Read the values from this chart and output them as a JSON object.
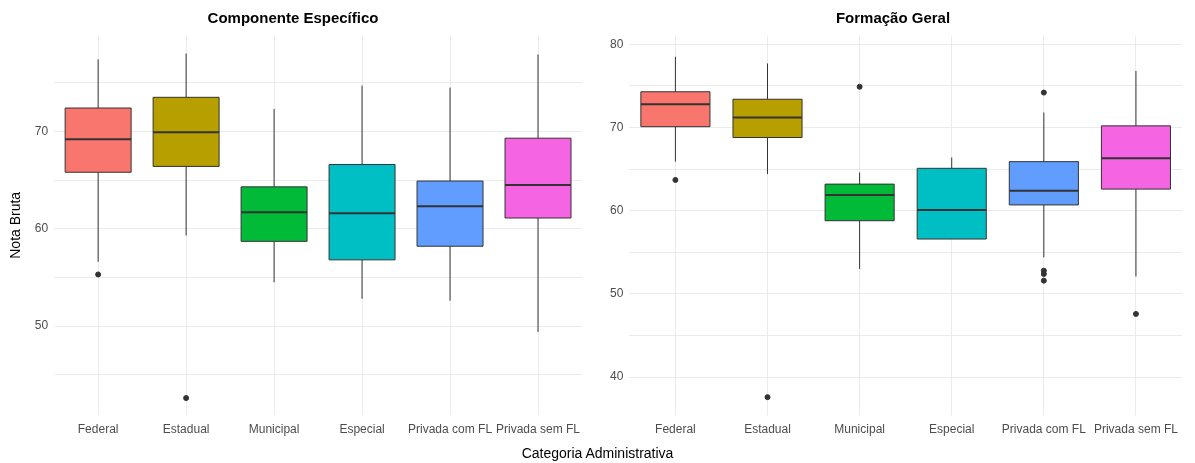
{
  "chart_data": [
    {
      "type": "box",
      "title": "Componente Específico",
      "xlabel": "Categoria Administrativa",
      "ylabel": "Nota Bruta",
      "categories": [
        "Federal",
        "Estadual",
        "Municipal",
        "Especial",
        "Privada com FL",
        "Privada sem FL"
      ],
      "colors": [
        "#f8766d",
        "#b79f00",
        "#00ba38",
        "#00bfc4",
        "#619cff",
        "#f564e3"
      ],
      "boxes": [
        {
          "low": 56.6,
          "q1": 65.8,
          "median": 69.2,
          "q3": 72.4,
          "high": 77.4,
          "outliers": [
            55.3
          ]
        },
        {
          "low": 59.3,
          "q1": 66.4,
          "median": 69.9,
          "q3": 73.5,
          "high": 78.0,
          "outliers": [
            42.6
          ]
        },
        {
          "low": 54.5,
          "q1": 58.7,
          "median": 61.7,
          "q3": 64.3,
          "high": 72.3
        },
        {
          "low": 52.8,
          "q1": 56.8,
          "median": 61.6,
          "q3": 66.6,
          "high": 74.7
        },
        {
          "low": 52.6,
          "q1": 58.2,
          "median": 62.3,
          "q3": 64.9,
          "high": 74.5
        },
        {
          "low": 49.4,
          "q1": 61.1,
          "median": 64.5,
          "q3": 69.3,
          "high": 77.9
        }
      ],
      "ylim": [
        40.9,
        79.8
      ],
      "yticks": [
        {
          "value": 45,
          "label": null
        },
        50,
        {
          "value": 55,
          "label": null
        },
        60,
        {
          "value": 65,
          "label": null
        },
        70,
        {
          "value": 75,
          "label": null
        }
      ],
      "grid": true,
      "legend": false
    },
    {
      "type": "box",
      "title": "Formação Geral",
      "categories": [
        "Federal",
        "Estadual",
        "Municipal",
        "Especial",
        "Privada com FL",
        "Privada sem FL"
      ],
      "colors": [
        "#f8766d",
        "#b79f00",
        "#00ba38",
        "#00bfc4",
        "#619cff",
        "#f564e3"
      ],
      "boxes": [
        {
          "low": 65.9,
          "q1": 70.1,
          "median": 72.8,
          "q3": 74.3,
          "high": 78.5,
          "outliers": [
            63.7
          ]
        },
        {
          "low": 64.4,
          "q1": 68.8,
          "median": 71.2,
          "q3": 73.4,
          "high": 77.7,
          "outliers": [
            37.6
          ]
        },
        {
          "low": 53.0,
          "q1": 58.8,
          "median": 61.9,
          "q3": 63.2,
          "high": 64.6,
          "outliers": [
            74.9
          ]
        },
        {
          "low": 56.6,
          "q1": 56.6,
          "median": 60.1,
          "q3": 65.1,
          "high": 66.4
        },
        {
          "low": 54.4,
          "q1": 60.7,
          "median": 62.4,
          "q3": 65.9,
          "high": 71.8,
          "outliers": [
            74.2,
            52.8,
            52.4,
            51.6
          ]
        },
        {
          "low": 52.1,
          "q1": 62.6,
          "median": 66.3,
          "q3": 70.2,
          "high": 76.8,
          "outliers": [
            47.6
          ]
        }
      ],
      "ylim": [
        35.5,
        81
      ],
      "yticks": [
        40,
        {
          "value": 45,
          "label": null
        },
        50,
        {
          "value": 55,
          "label": null
        },
        60,
        {
          "value": 65,
          "label": null
        },
        70,
        {
          "value": 75,
          "label": null
        },
        80
      ],
      "grid": true,
      "legend": false
    }
  ]
}
